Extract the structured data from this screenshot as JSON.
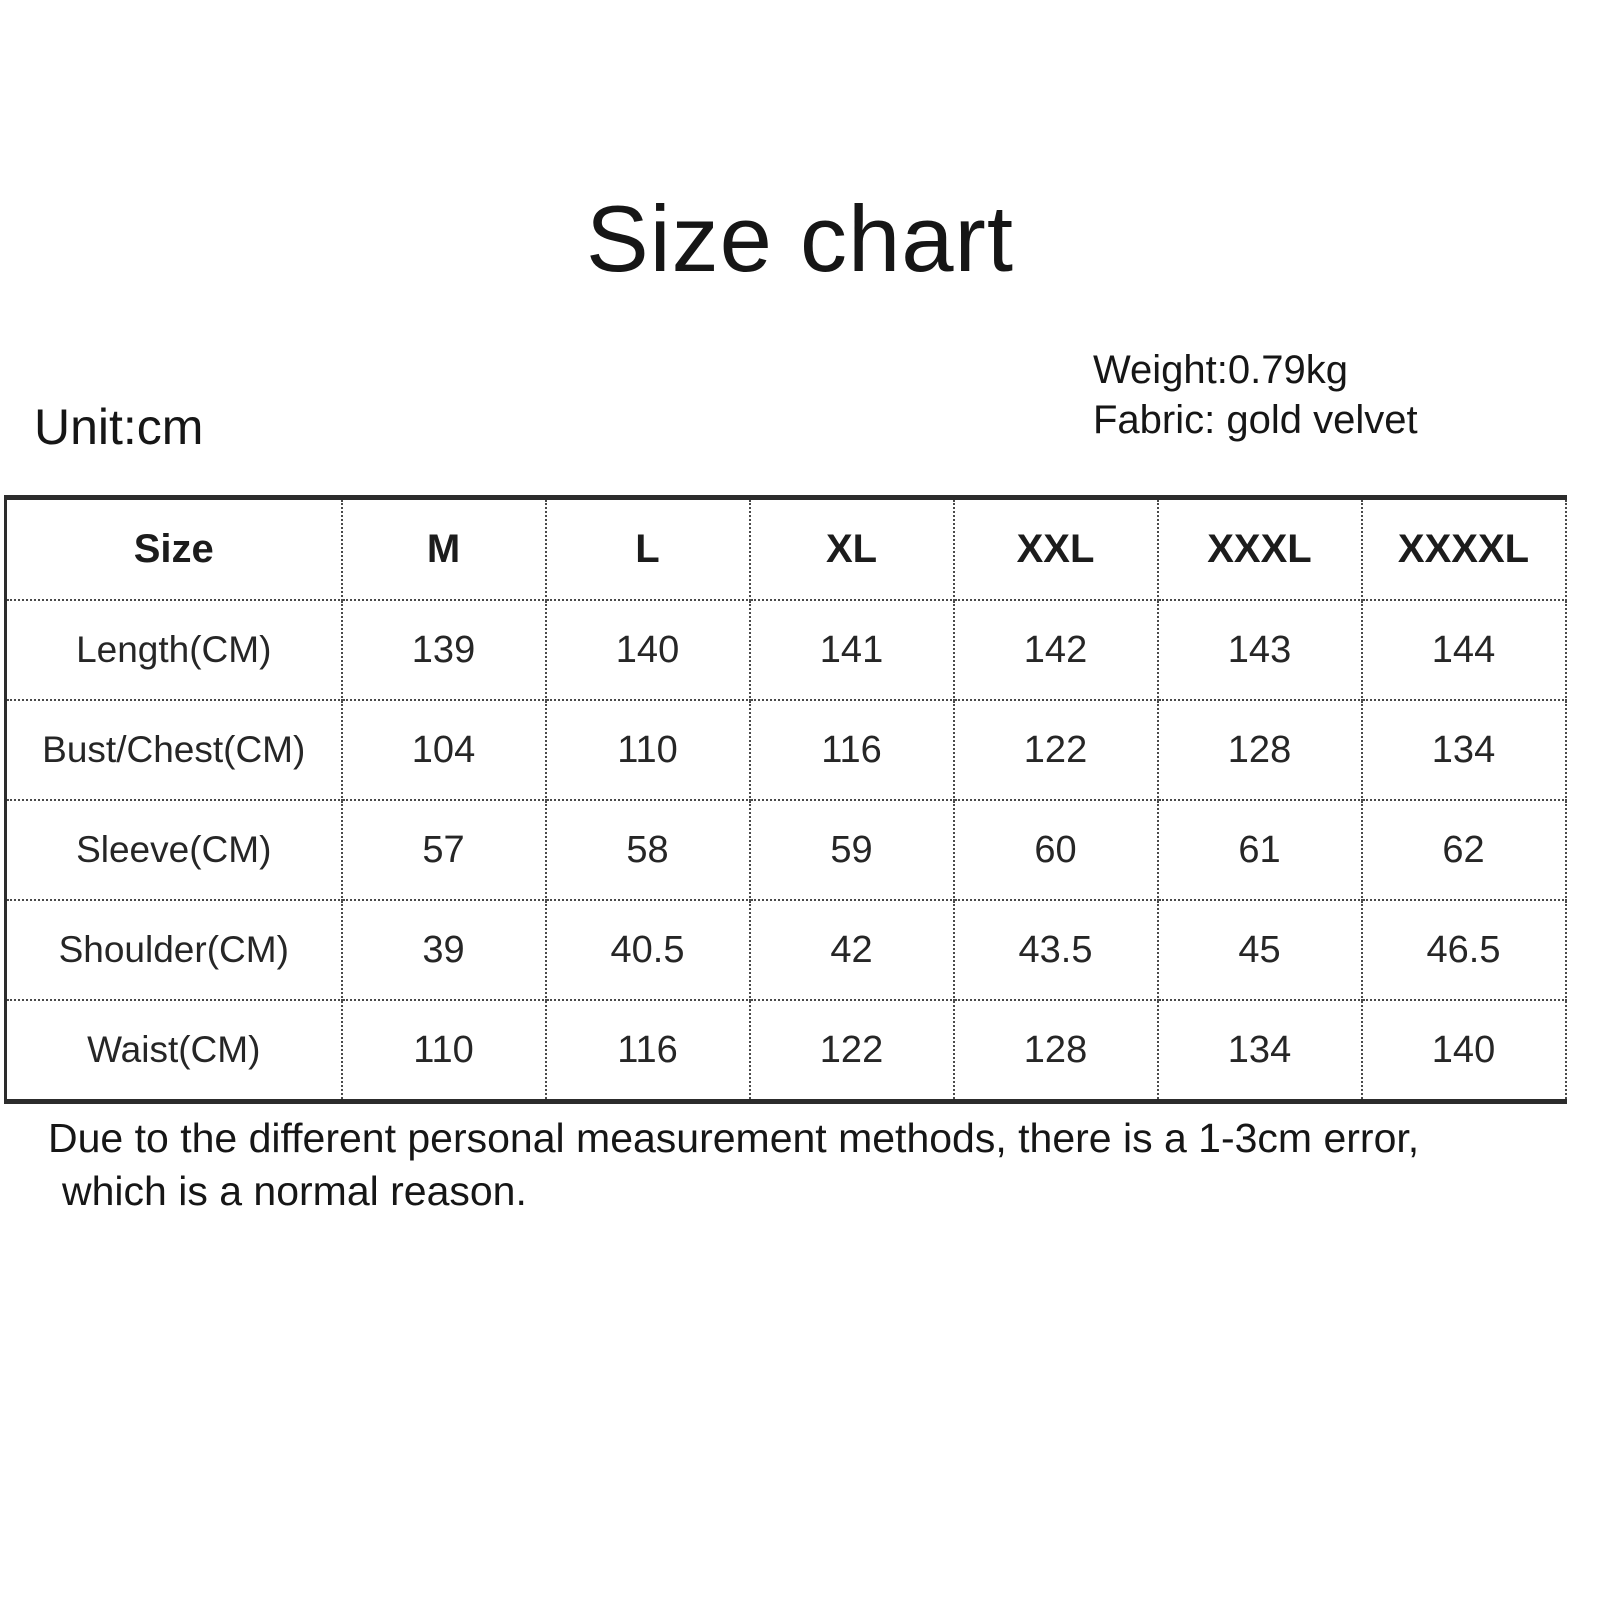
{
  "header": {
    "title": "Size chart",
    "unit_label": "Unit:cm",
    "weight": "Weight:0.79kg",
    "fabric": "Fabric: gold velvet"
  },
  "chart_data": {
    "type": "table",
    "columns": [
      "Size",
      "M",
      "L",
      "XL",
      "XXL",
      "XXXL",
      "XXXXL"
    ],
    "rows": [
      {
        "label": "Length(CM)",
        "values": [
          "139",
          "140",
          "141",
          "142",
          "143",
          "144"
        ]
      },
      {
        "label": "Bust/Chest(CM)",
        "values": [
          "104",
          "110",
          "116",
          "122",
          "128",
          "134"
        ]
      },
      {
        "label": "Sleeve(CM)",
        "values": [
          "57",
          "58",
          "59",
          "60",
          "61",
          "62"
        ]
      },
      {
        "label": "Shoulder(CM)",
        "values": [
          "39",
          "40.5",
          "42",
          "43.5",
          "45",
          "46.5"
        ]
      },
      {
        "label": "Waist(CM)",
        "values": [
          "110",
          "116",
          "122",
          "128",
          "134",
          "140"
        ]
      }
    ]
  },
  "note": {
    "line1": "Due to the different personal measurement methods, there is a 1-3cm error,",
    "line2": "which is a normal reason."
  }
}
